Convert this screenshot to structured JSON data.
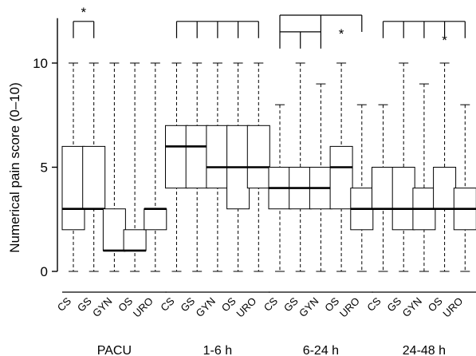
{
  "chart_data": {
    "type": "boxplot",
    "ylabel": "Numerical pain score (0–10)",
    "ylim": [
      0,
      12
    ],
    "yticks": [
      0,
      5,
      10
    ],
    "grid": false,
    "groups": [
      {
        "label": "PACU",
        "categories": [
          "CS",
          "GS",
          "GYN",
          "OS",
          "URO"
        ],
        "boxes": [
          {
            "min": 0,
            "q1": 2,
            "median": 3,
            "q3": 6,
            "max": 10
          },
          {
            "min": 0,
            "q1": 3,
            "median": 3,
            "q3": 6,
            "max": 10
          },
          {
            "min": 0,
            "q1": 1,
            "median": 1,
            "q3": 3,
            "max": 10
          },
          {
            "min": 0,
            "q1": 1,
            "median": 1,
            "q3": 2,
            "max": 10
          },
          {
            "min": 0,
            "q1": 2,
            "median": 3,
            "q3": 3,
            "max": 10
          }
        ]
      },
      {
        "label": "1-6 h",
        "categories": [
          "CS",
          "GS",
          "GYN",
          "OS",
          "URO"
        ],
        "boxes": [
          {
            "min": 0,
            "q1": 4,
            "median": 6,
            "q3": 7,
            "max": 10
          },
          {
            "min": 0,
            "q1": 4,
            "median": 6,
            "q3": 7,
            "max": 10
          },
          {
            "min": 0,
            "q1": 4,
            "median": 5,
            "q3": 7,
            "max": 10
          },
          {
            "min": 0,
            "q1": 3,
            "median": 5,
            "q3": 7,
            "max": 10
          },
          {
            "min": 0,
            "q1": 4,
            "median": 5,
            "q3": 7,
            "max": 10
          }
        ]
      },
      {
        "label": "6-24 h",
        "categories": [
          "CS",
          "GS",
          "GYN",
          "OS",
          "URO"
        ],
        "boxes": [
          {
            "min": 0,
            "q1": 3,
            "median": 4,
            "q3": 5,
            "max": 8
          },
          {
            "min": 0,
            "q1": 3,
            "median": 4,
            "q3": 5,
            "max": 10
          },
          {
            "min": 0,
            "q1": 3,
            "median": 4,
            "q3": 5,
            "max": 9
          },
          {
            "min": 0,
            "q1": 3,
            "median": 5,
            "q3": 6,
            "max": 10
          },
          {
            "min": 0,
            "q1": 2,
            "median": 3,
            "q3": 4,
            "max": 8
          }
        ]
      },
      {
        "label": "24-48 h",
        "categories": [
          "CS",
          "GS",
          "GYN",
          "OS",
          "URO"
        ],
        "boxes": [
          {
            "min": 0,
            "q1": 3,
            "median": 3,
            "q3": 5,
            "max": 8
          },
          {
            "min": 0,
            "q1": 2,
            "median": 3,
            "q3": 5,
            "max": 10
          },
          {
            "min": 0,
            "q1": 2,
            "median": 3,
            "q3": 4,
            "max": 9
          },
          {
            "min": 0,
            "q1": 3,
            "median": 3,
            "q3": 5,
            "max": 10
          },
          {
            "min": 0,
            "q1": 2,
            "median": 3,
            "q3": 4,
            "max": 8
          }
        ]
      }
    ],
    "annotations": [
      {
        "group": 0,
        "from": 0,
        "to": 1,
        "level": 12,
        "label": "*"
      },
      {
        "group": 1,
        "from": 0,
        "to": 4,
        "level": 12,
        "ticks": [
          0,
          1,
          2,
          3,
          4
        ],
        "label": ""
      },
      {
        "group": 2,
        "from": 0,
        "to": 2,
        "level": 11.5,
        "ticks": [
          0,
          1,
          2
        ],
        "label": ""
      },
      {
        "group": 2,
        "from": 0,
        "to": 4,
        "level": 12.3,
        "ticks": [
          0,
          2,
          4
        ],
        "label": "*",
        "label_at": 3
      },
      {
        "group": 3,
        "from": 0,
        "to": 4,
        "level": 12,
        "ticks": [
          0,
          1,
          2,
          3,
          4
        ],
        "label": "*",
        "label_at": 3
      }
    ]
  }
}
